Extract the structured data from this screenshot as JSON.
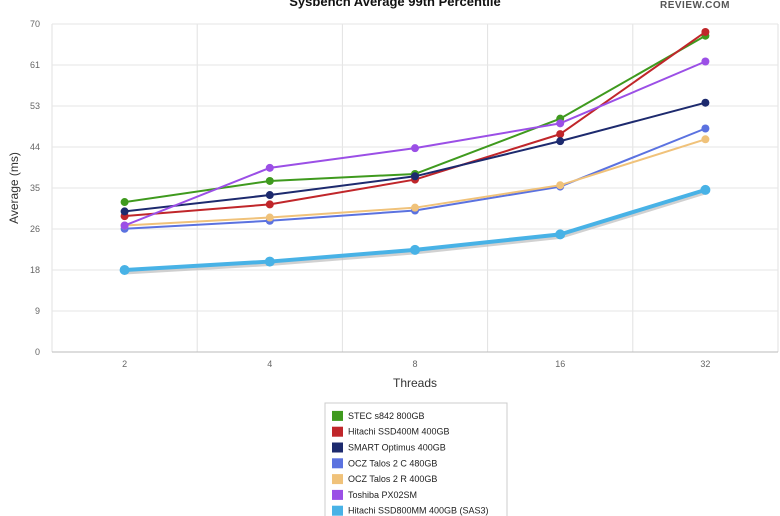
{
  "logo_text": "REVIEW.COM",
  "chart_data": {
    "type": "line",
    "title": "Sysbench Average 99th Percentile",
    "xlabel": "Threads",
    "ylabel": "Average (ms)",
    "x": [
      "2",
      "4",
      "8",
      "16",
      "32"
    ],
    "y_ticks": [
      "0",
      "9",
      "18",
      "26",
      "35",
      "44",
      "53",
      "61",
      "70"
    ],
    "ylim": [
      0,
      70
    ],
    "grid": true,
    "legend_position": "bottom",
    "series": [
      {
        "name": "STEC s842 800GB",
        "color": "#3f9a1e",
        "values": [
          32.0,
          36.5,
          38.0,
          49.8,
          67.5
        ]
      },
      {
        "name": "Hitachi SSD400M 400GB",
        "color": "#c0262a",
        "values": [
          29.0,
          31.5,
          36.8,
          46.5,
          68.3
        ]
      },
      {
        "name": "SMART Optimus 400GB",
        "color": "#1d2a6e",
        "values": [
          30.0,
          33.5,
          37.5,
          45.0,
          53.2
        ]
      },
      {
        "name": "OCZ Talos 2 C 480GB",
        "color": "#5b72e0",
        "values": [
          26.3,
          28.0,
          30.2,
          35.3,
          47.7
        ]
      },
      {
        "name": "OCZ Talos 2 R 400GB",
        "color": "#f0c27a",
        "values": [
          27.0,
          28.7,
          30.8,
          35.6,
          45.4
        ]
      },
      {
        "name": "Toshiba PX02SM",
        "color": "#9b4fe6",
        "values": [
          27.0,
          39.3,
          43.5,
          48.8,
          62.0
        ]
      },
      {
        "name": "Hitachi SSD800MM 400GB (SAS3)",
        "color": "#48b2e6",
        "values": [
          17.5,
          19.3,
          21.8,
          25.1,
          34.6
        ]
      }
    ]
  }
}
